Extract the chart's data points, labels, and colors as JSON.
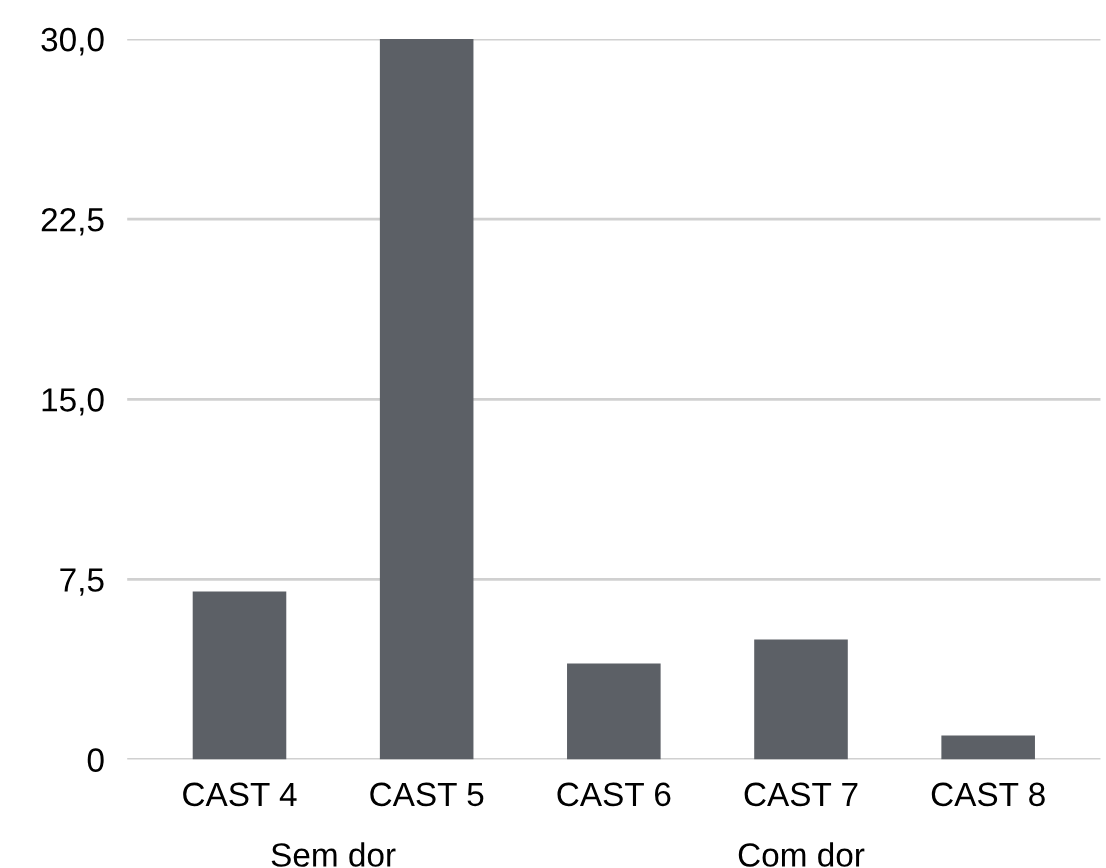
{
  "chart_data": {
    "type": "bar",
    "categories": [
      "CAST 4",
      "CAST 5",
      "CAST 6",
      "CAST 7",
      "CAST 8"
    ],
    "values": [
      7,
      30,
      4,
      5,
      1
    ],
    "color": "#5c6066",
    "ylim": [
      0,
      30
    ],
    "yticks": [
      0,
      {
        "value": 7.5,
        "label": "7,5"
      },
      {
        "value": 15,
        "label": "15,0"
      },
      {
        "value": 22.5,
        "label": "22,5"
      },
      {
        "value": 30,
        "label": "30,0"
      }
    ],
    "grid": "y",
    "annotations": [
      "Sem dor",
      "Com dor"
    ]
  }
}
